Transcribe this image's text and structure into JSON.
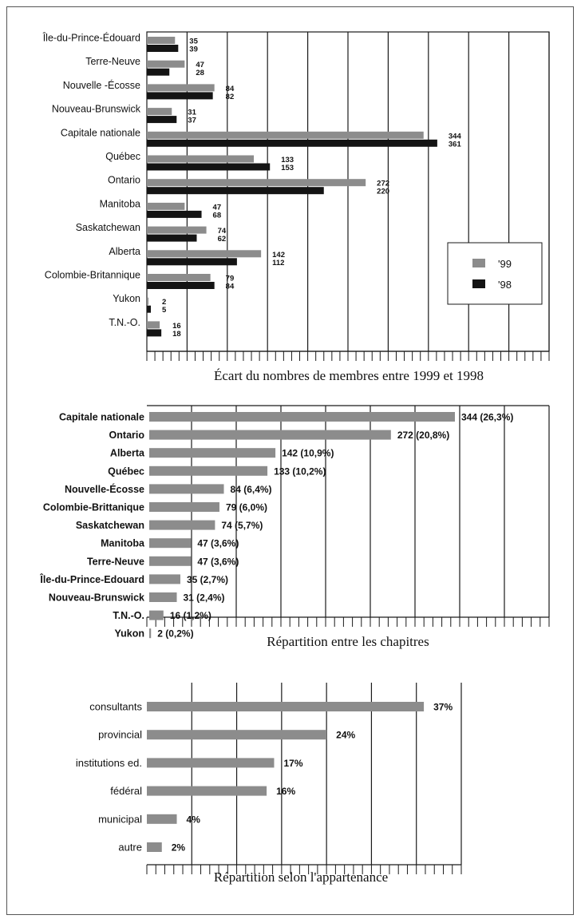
{
  "colors": {
    "c99": "#8c8c8c",
    "c98": "#141414",
    "bar": "#8c8c8c",
    "grid": "#1a1a1a"
  },
  "chart_data": [
    {
      "type": "bar",
      "orientation": "horizontal",
      "title": "Écart du nombres de membres entre 1999 et 1998",
      "categories": [
        "Île-du-Prince-Édouard",
        "Terre-Neuve",
        "Nouvelle -Écosse",
        "Nouveau-Brunswick",
        "Capitale nationale",
        "Québec",
        "Ontario",
        "Manitoba",
        "Saskatchewan",
        "Alberta",
        "Colombie-Britannique",
        "Yukon",
        "T.N.-O."
      ],
      "series": [
        {
          "name": "'99",
          "values": [
            35,
            47,
            84,
            31,
            344,
            133,
            272,
            47,
            74,
            142,
            79,
            2,
            16
          ]
        },
        {
          "name": "'98",
          "values": [
            39,
            28,
            82,
            37,
            361,
            153,
            220,
            68,
            62,
            112,
            84,
            5,
            18
          ]
        }
      ],
      "xlim": [
        0,
        500
      ],
      "grid": true,
      "legend_position": "right"
    },
    {
      "type": "bar",
      "orientation": "horizontal",
      "title": "Répartition entre les chapitres",
      "categories": [
        "Capitale nationale",
        "Ontario",
        "Alberta",
        "Québec",
        "Nouvelle-Écosse",
        "Colombie-Brittanique",
        "Saskatchewan",
        "Manitoba",
        "Terre-Neuve",
        "Île-du-Prince-Edouard",
        "Nouveau-Brunswick",
        "T.N.-O.",
        "Yukon"
      ],
      "values": [
        344,
        272,
        142,
        133,
        84,
        79,
        74,
        47,
        47,
        35,
        31,
        16,
        2
      ],
      "labels": [
        "344 (26,3%)",
        "272 (20,8%)",
        "142 (10,9%)",
        "133 (10,2%)",
        "84 (6,4%)",
        "79 (6,0%)",
        "74 (5,7%)",
        "47 (3,6%)",
        "47 (3,6%)",
        "35 (2,7%)",
        "31 (2,4%)",
        "16 (1,2%)",
        "2 (0,2%)"
      ],
      "xlim": [
        0,
        450
      ],
      "grid": true
    },
    {
      "type": "bar",
      "orientation": "horizontal",
      "title": "Répartition selon l'appartenance",
      "categories": [
        "consultants",
        "provincial",
        "institutions ed.",
        "fédéral",
        "municipal",
        "autre"
      ],
      "values": [
        37,
        24,
        17,
        16,
        4,
        2
      ],
      "labels": [
        "37%",
        "24%",
        "17%",
        "16%",
        "4%",
        "2%"
      ],
      "xlim": [
        0,
        42
      ],
      "grid": true
    }
  ]
}
